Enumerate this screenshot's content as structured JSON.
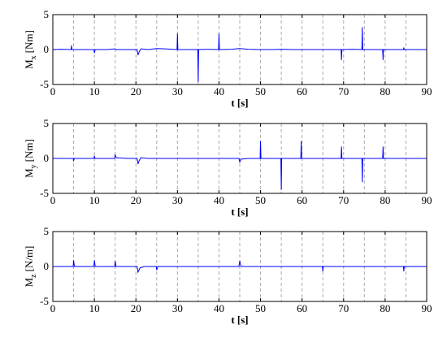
{
  "chart_data": [
    {
      "type": "line",
      "xlabel": "t [s]",
      "ylabel": {
        "main": "M",
        "sub": "x",
        "unit": "[Nm]"
      },
      "xlim": [
        0,
        90
      ],
      "ylim": [
        -5,
        5
      ],
      "xticks": [
        0,
        10,
        20,
        30,
        40,
        50,
        60,
        70,
        80,
        90
      ],
      "yticks": [
        -5,
        0,
        5
      ],
      "vlines": [
        5,
        10,
        15,
        20,
        25,
        30,
        35,
        40,
        45,
        50,
        55,
        60,
        65,
        70,
        75,
        80,
        85
      ],
      "color": "#0000ff",
      "x": [
        0,
        2,
        4.4,
        4.5,
        4.6,
        7,
        9.9,
        10,
        10.2,
        13,
        15,
        15.2,
        18,
        20.3,
        20.5,
        20.8,
        21.2,
        23,
        25,
        27,
        29.9,
        30,
        30.1,
        33,
        34.9,
        35,
        35.1,
        37,
        39.9,
        40,
        40.1,
        43,
        45,
        47,
        50,
        53,
        55,
        58,
        60,
        63,
        65,
        67,
        69.4,
        69.5,
        69.6,
        72,
        74.4,
        74.5,
        74.6,
        77,
        79.4,
        79.5,
        79.6,
        82,
        84.4,
        84.5,
        84.6,
        87,
        90
      ],
      "values": [
        0,
        0.05,
        0,
        0.6,
        0,
        0,
        0,
        -0.5,
        0,
        0,
        0.1,
        0,
        0,
        0,
        -0.8,
        -0.3,
        0.1,
        0,
        0.15,
        0.1,
        0,
        2.3,
        0,
        0,
        0,
        -4.7,
        0,
        0.05,
        0,
        2.3,
        0,
        0.05,
        0.15,
        0.05,
        0,
        0,
        0.05,
        0,
        0,
        0,
        0,
        0,
        0,
        -1.5,
        0,
        0.05,
        0,
        3.2,
        0,
        0,
        0,
        -1.5,
        0,
        0,
        0,
        0.3,
        0,
        0,
        0
      ]
    },
    {
      "type": "line",
      "xlabel": "t [s]",
      "ylabel": {
        "main": "M",
        "sub": "y",
        "unit": "[Nm]"
      },
      "xlim": [
        0,
        90
      ],
      "ylim": [
        -5,
        5
      ],
      "xticks": [
        0,
        10,
        20,
        30,
        40,
        50,
        60,
        70,
        80,
        90
      ],
      "yticks": [
        -5,
        0,
        5
      ],
      "vlines": [
        5,
        10,
        15,
        20,
        25,
        30,
        35,
        40,
        45,
        50,
        55,
        60,
        65,
        70,
        75,
        80,
        85
      ],
      "color": "#0000ff",
      "x": [
        0,
        2,
        4.9,
        5,
        5.2,
        8,
        9.9,
        10,
        10.2,
        13,
        14.9,
        15,
        15.3,
        18,
        20.3,
        20.5,
        20.8,
        21.2,
        23,
        25,
        30,
        35,
        40,
        44.8,
        45,
        45.3,
        47,
        49.9,
        50,
        50.1,
        52,
        54.9,
        55,
        55.1,
        57,
        59.7,
        59.8,
        59.9,
        62,
        65,
        69.4,
        69.5,
        69.6,
        72,
        74.4,
        74.5,
        74.6,
        77,
        79.4,
        79.5,
        79.6,
        82,
        85,
        90
      ],
      "values": [
        0,
        0,
        0,
        -0.3,
        0,
        0,
        0,
        0.3,
        0,
        0,
        0,
        0.5,
        0.1,
        0,
        0,
        -0.8,
        -0.3,
        0.1,
        0,
        0,
        0,
        0,
        0,
        0,
        -0.5,
        -0.1,
        0,
        0,
        2.5,
        0,
        0,
        0,
        -4.5,
        0,
        0,
        0,
        2.5,
        0,
        0,
        0,
        0,
        1.7,
        0,
        0,
        0,
        -3.4,
        0,
        0,
        0,
        1.7,
        0,
        0,
        0,
        0
      ]
    },
    {
      "type": "line",
      "xlabel": "t [s]",
      "ylabel": {
        "main": "M",
        "sub": "z",
        "unit": "[N/m]"
      },
      "xlim": [
        0,
        90
      ],
      "ylim": [
        -5,
        5
      ],
      "xticks": [
        0,
        10,
        20,
        30,
        40,
        50,
        60,
        70,
        80,
        90
      ],
      "yticks": [
        -5,
        0,
        5
      ],
      "vlines": [
        5,
        10,
        15,
        20,
        25,
        30,
        35,
        40,
        45,
        50,
        55,
        60,
        65,
        70,
        75,
        80,
        85
      ],
      "color": "#0000ff",
      "x": [
        0,
        4.9,
        5,
        5.2,
        9.9,
        10,
        10.2,
        14.9,
        15,
        15.2,
        20.3,
        20.5,
        21,
        22,
        24.9,
        25,
        25.3,
        30,
        44.8,
        45,
        45.3,
        50,
        64.9,
        65,
        65.1,
        70,
        84.4,
        84.5,
        84.6,
        90
      ],
      "values": [
        0,
        0,
        0.9,
        0,
        0,
        0.9,
        0,
        0,
        0.8,
        0,
        0,
        -0.8,
        -0.2,
        0,
        0,
        -0.5,
        0,
        0,
        0,
        0.8,
        0,
        0,
        0,
        -0.7,
        0,
        0,
        0,
        -0.7,
        0,
        0
      ]
    }
  ]
}
